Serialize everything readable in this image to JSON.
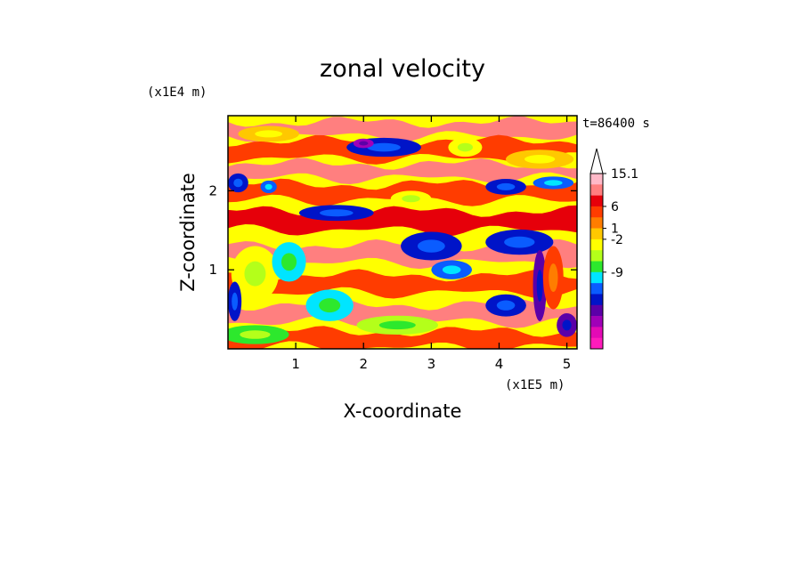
{
  "chart_data": {
    "type": "heatmap",
    "title": "zonal velocity",
    "xlabel": "X-coordinate",
    "ylabel": "Z-coordinate",
    "x_unit_label": "(x1E5 m)",
    "y_unit_label": "(x1E4 m)",
    "time_label": "t=86400 s",
    "xlim": [
      0,
      5.15
    ],
    "ylim": [
      0,
      2.95
    ],
    "x_ticks": [
      "1",
      "2",
      "3",
      "4",
      "5"
    ],
    "y_ticks": [
      "1",
      "2"
    ],
    "colorbar": {
      "colors": [
        "#ff1bbb",
        "#e30ab5",
        "#a000b8",
        "#5b00a8",
        "#0014c8",
        "#0a5cff",
        "#00e5ff",
        "#2de82d",
        "#b4ff1a",
        "#ffff00",
        "#ffc800",
        "#ff7d00",
        "#ff3c00",
        "#e6000a",
        "#ff7f7f",
        "#ffb9c8",
        "#ffffff"
      ],
      "tick_labels": [
        "15.1",
        "6",
        "1",
        "-2",
        "-9"
      ],
      "extend": "max"
    },
    "bands": [
      {
        "z": 2.78,
        "thick": 0.18,
        "level": 6
      },
      {
        "z": 2.52,
        "thick": 0.22,
        "level": 4
      },
      {
        "z": 2.25,
        "thick": 0.18,
        "level": 6
      },
      {
        "z": 1.98,
        "thick": 0.2,
        "level": 4
      },
      {
        "z": 1.62,
        "thick": 0.24,
        "level": 5
      },
      {
        "z": 1.2,
        "thick": 0.22,
        "level": 6
      },
      {
        "z": 0.82,
        "thick": 0.22,
        "level": 4
      },
      {
        "z": 0.45,
        "thick": 0.22,
        "level": 6
      },
      {
        "z": 0.12,
        "thick": 0.2,
        "level": 4
      }
    ],
    "features": [
      {
        "x": 2.3,
        "z": 2.55,
        "rx": 0.55,
        "rz": 0.12,
        "level": -4
      },
      {
        "x": 2.0,
        "z": 2.6,
        "rx": 0.15,
        "rz": 0.06,
        "level": -6
      },
      {
        "x": 0.6,
        "z": 2.72,
        "rx": 0.45,
        "rz": 0.1,
        "level": 2
      },
      {
        "x": 3.5,
        "z": 2.55,
        "rx": 0.25,
        "rz": 0.12,
        "level": 1
      },
      {
        "x": 4.6,
        "z": 2.4,
        "rx": 0.5,
        "rz": 0.12,
        "level": 2
      },
      {
        "x": 0.15,
        "z": 2.1,
        "rx": 0.15,
        "rz": 0.12,
        "level": -4
      },
      {
        "x": 0.6,
        "z": 2.05,
        "rx": 0.12,
        "rz": 0.08,
        "level": -3
      },
      {
        "x": 4.1,
        "z": 2.05,
        "rx": 0.3,
        "rz": 0.1,
        "level": -4
      },
      {
        "x": 4.8,
        "z": 2.1,
        "rx": 0.3,
        "rz": 0.08,
        "level": -3
      },
      {
        "x": 1.6,
        "z": 1.72,
        "rx": 0.55,
        "rz": 0.1,
        "level": -4
      },
      {
        "x": 2.7,
        "z": 1.9,
        "rx": 0.3,
        "rz": 0.1,
        "level": 1
      },
      {
        "x": 3.0,
        "z": 1.3,
        "rx": 0.45,
        "rz": 0.18,
        "level": -4
      },
      {
        "x": 4.3,
        "z": 1.35,
        "rx": 0.5,
        "rz": 0.16,
        "level": -4
      },
      {
        "x": 3.3,
        "z": 1.0,
        "rx": 0.3,
        "rz": 0.12,
        "level": -3
      },
      {
        "x": 4.1,
        "z": 0.55,
        "rx": 0.3,
        "rz": 0.14,
        "level": -4
      },
      {
        "x": 4.6,
        "z": 0.8,
        "rx": 0.1,
        "rz": 0.45,
        "level": -5
      },
      {
        "x": 4.8,
        "z": 0.9,
        "rx": 0.15,
        "rz": 0.4,
        "level": 4
      },
      {
        "x": 5.0,
        "z": 0.3,
        "rx": 0.15,
        "rz": 0.15,
        "level": -5
      },
      {
        "x": 0.4,
        "z": 0.95,
        "rx": 0.35,
        "rz": 0.35,
        "level": 1
      },
      {
        "x": 0.9,
        "z": 1.1,
        "rx": 0.25,
        "rz": 0.25,
        "level": -2
      },
      {
        "x": 1.5,
        "z": 0.55,
        "rx": 0.35,
        "rz": 0.2,
        "level": -2
      },
      {
        "x": 0.1,
        "z": 0.6,
        "rx": 0.1,
        "rz": 0.25,
        "level": -4
      },
      {
        "x": 2.5,
        "z": 0.3,
        "rx": 0.6,
        "rz": 0.12,
        "level": 0
      },
      {
        "x": 0.4,
        "z": 0.18,
        "rx": 0.5,
        "rz": 0.12,
        "level": -1
      }
    ]
  }
}
